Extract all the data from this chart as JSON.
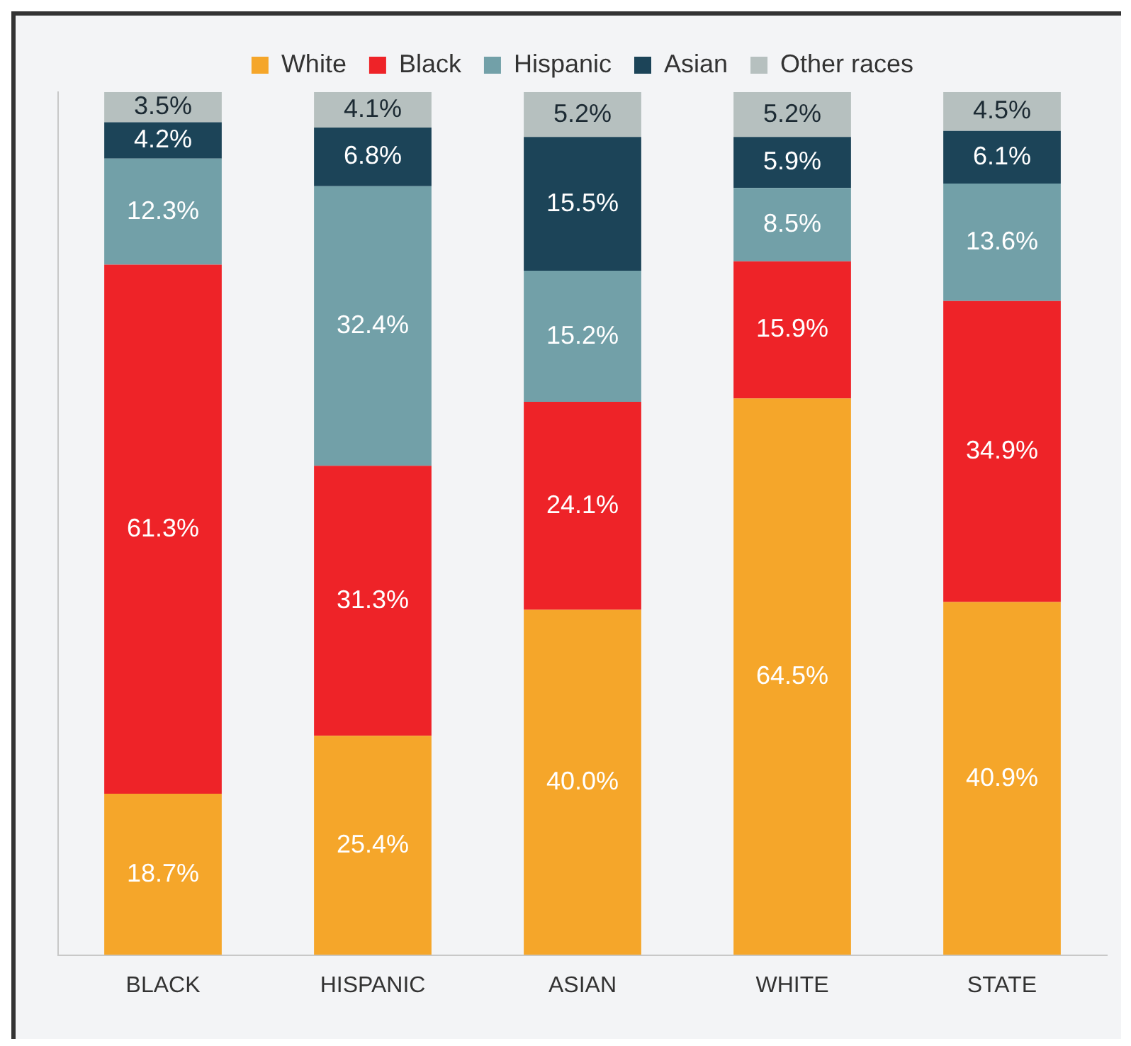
{
  "chart_data": {
    "type": "bar",
    "stacked": true,
    "categories": [
      "BLACK",
      "HISPANIC",
      "ASIAN",
      "WHITE",
      "STATE"
    ],
    "series": [
      {
        "name": "White",
        "color": "#f5a62a",
        "values": [
          18.7,
          25.4,
          40.0,
          64.5,
          40.9
        ],
        "value_labels": [
          "18.7%",
          "25.4%",
          "40.0%",
          "64.5%",
          "40.9%"
        ]
      },
      {
        "name": "Black",
        "color": "#ee2328",
        "values": [
          61.3,
          31.3,
          24.1,
          15.9,
          34.9
        ],
        "value_labels": [
          "61.3%",
          "31.3%",
          "24.1%",
          "15.9%",
          "34.9%"
        ]
      },
      {
        "name": "Hispanic",
        "color": "#72a0a8",
        "values": [
          12.3,
          32.4,
          15.2,
          8.5,
          13.6
        ],
        "value_labels": [
          "12.3%",
          "32.4%",
          "15.2%",
          "8.5%",
          "13.6%"
        ]
      },
      {
        "name": "Asian",
        "color": "#1c4458",
        "values": [
          4.2,
          6.8,
          15.5,
          5.9,
          6.1
        ],
        "value_labels": [
          "4.2%",
          "6.8%",
          "15.5%",
          "5.9%",
          "6.1%"
        ]
      },
      {
        "name": "Other races",
        "color": "#b6c0bf",
        "values": [
          3.5,
          4.1,
          5.2,
          5.2,
          4.5
        ],
        "value_labels": [
          "3.5%",
          "4.1%",
          "5.2%",
          "5.2%",
          "4.5%"
        ]
      }
    ],
    "legend": "top",
    "grid": false,
    "tick_labels": "x"
  }
}
